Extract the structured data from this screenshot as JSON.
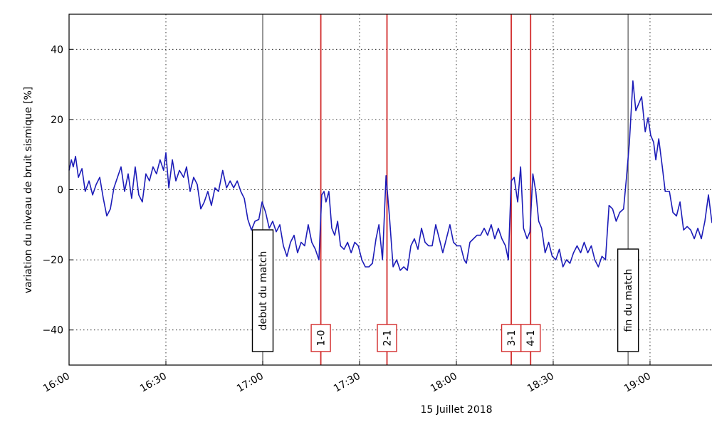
{
  "chart_data": {
    "type": "line",
    "title": "",
    "xlabel": "15 Juillet 2018",
    "ylabel": "variation du niveau de bruit sismique [%]",
    "x_units": "minutes since 16:00",
    "xlim": [
      0,
      199.2
    ],
    "ylim": [
      -50,
      50
    ],
    "grid": true,
    "x_ticks": [
      {
        "value": 0,
        "label": "16:00"
      },
      {
        "value": 30,
        "label": "16:30"
      },
      {
        "value": 60,
        "label": "17:00"
      },
      {
        "value": 90,
        "label": "17:30"
      },
      {
        "value": 120,
        "label": "18:00"
      },
      {
        "value": 150,
        "label": "18:30"
      },
      {
        "value": 180,
        "label": "19:00"
      }
    ],
    "y_ticks": [
      {
        "value": 40,
        "label": "40"
      },
      {
        "value": 20,
        "label": "20"
      },
      {
        "value": 0,
        "label": "0"
      },
      {
        "value": -20,
        "label": "−20"
      },
      {
        "value": -40,
        "label": "−40"
      }
    ],
    "series": [
      {
        "name": "bruit sismique",
        "color": "#1c1cb8",
        "x": [
          0,
          0.7,
          1.3,
          2,
          2.9,
          4,
          5,
          6.2,
          7.3,
          8.4,
          9.5,
          10.6,
          11.7,
          12.8,
          13.9,
          15,
          16.1,
          17.2,
          18.3,
          19.4,
          20.5,
          21.6,
          22.7,
          23.8,
          24.9,
          26,
          27.1,
          28.2,
          29.3,
          30,
          30.9,
          32,
          33.1,
          34.2,
          35.5,
          36.4,
          37.5,
          38.6,
          39.7,
          40.8,
          41.9,
          43,
          44.1,
          45.2,
          46.3,
          47.6,
          48.8,
          49.9,
          51,
          52.1,
          53.2,
          54.3,
          55.4,
          56.5,
          57.6,
          58.8,
          59.8,
          60.9,
          62,
          63.1,
          64.2,
          65.3,
          66.4,
          67.5,
          68.6,
          69.7,
          70.8,
          71.9,
          73,
          74.1,
          75.2,
          76.3,
          77.4,
          78.3,
          79,
          79.6,
          80.5,
          81.4,
          82.3,
          83.2,
          84.1,
          85.2,
          86.3,
          87.4,
          88.5,
          89.6,
          90.7,
          91.8,
          92.9,
          94,
          95.1,
          96,
          97.1,
          98.2,
          99.3,
          100.4,
          101.5,
          102.6,
          103.7,
          104.8,
          105.9,
          107,
          108.1,
          109.2,
          110.3,
          111.4,
          112.5,
          113.6,
          114.7,
          115.8,
          116.9,
          118,
          119.1,
          120.2,
          121.3,
          122.4,
          123.1,
          124.2,
          125.3,
          126.4,
          127.5,
          128.6,
          129.7,
          130.8,
          131.9,
          133,
          134.1,
          135.2,
          136.1,
          137,
          137.9,
          139,
          139.9,
          140.8,
          141.9,
          142.8,
          143.7,
          144.6,
          145.5,
          146.4,
          147.5,
          148.6,
          149.7,
          150.8,
          151.9,
          153,
          154.1,
          155.2,
          156.3,
          157.4,
          158.5,
          159.6,
          160.7,
          161.8,
          162.9,
          164,
          165.1,
          166.2,
          167.3,
          168.4,
          169.5,
          170.6,
          171.8,
          172.7,
          173.6,
          174.7,
          175.6,
          176.5,
          177.4,
          178.5,
          179.4,
          180.2,
          181.1,
          181.8,
          182.7,
          183.8,
          184.7,
          186,
          187.1,
          188.2,
          189.3,
          190.4,
          191.5,
          192.6,
          193.7,
          194.8,
          195.9,
          197,
          198.1,
          199.2
        ],
        "y": [
          5.5,
          8.5,
          6.5,
          9.5,
          3.5,
          6,
          -0.5,
          2.5,
          -1.5,
          1.5,
          3.5,
          -2.5,
          -7.5,
          -5.5,
          0.5,
          3.5,
          6.5,
          -0.5,
          4.5,
          -2.5,
          6.5,
          -1.5,
          -3.5,
          4.5,
          2.5,
          6.5,
          4.5,
          8.5,
          5.5,
          10.5,
          0.5,
          8.5,
          2.5,
          5.5,
          3.5,
          6.5,
          -0.5,
          3.5,
          1.5,
          -5.5,
          -3.5,
          -0.5,
          -4.5,
          0.5,
          -0.5,
          5.5,
          0.5,
          2.5,
          0.5,
          2.5,
          -0.5,
          -2.5,
          -8.5,
          -11.5,
          -9,
          -8.5,
          -3.5,
          -6.5,
          -11,
          -9,
          -12,
          -10,
          -16,
          -19,
          -15,
          -13,
          -18,
          -15,
          -16,
          -10,
          -15,
          -17,
          -20,
          -1.5,
          -0.5,
          -3.5,
          -0.5,
          -11,
          -13,
          -9,
          -16,
          -17,
          -15,
          -18,
          -15,
          -16,
          -20,
          -22,
          -22,
          -21,
          -14,
          -10,
          -20,
          4,
          -8,
          -22,
          -20,
          -23,
          -22,
          -23,
          -16,
          -14,
          -17,
          -11,
          -15,
          -16,
          -16,
          -10,
          -14,
          -18,
          -14,
          -10,
          -15,
          -16,
          -16,
          -20,
          -21,
          -15,
          -14,
          -13,
          -13,
          -11,
          -13,
          -10,
          -14,
          -11,
          -14,
          -16,
          -20,
          2.5,
          3.5,
          -3.5,
          6.5,
          -11,
          -14,
          -12,
          4.5,
          -0.5,
          -9,
          -11,
          -18,
          -15,
          -19,
          -20,
          -17,
          -22,
          -20,
          -21,
          -18,
          -16,
          -18,
          -15,
          -18,
          -16,
          -20,
          -22,
          -19,
          -20,
          -4.5,
          -5.5,
          -9,
          -6.5,
          -5.5,
          3.5,
          13.5,
          31,
          22.5,
          24.5,
          26.5,
          16.5,
          20.5,
          15.5,
          13.5,
          8.5,
          14.5,
          6.5,
          -0.5,
          -0.5,
          -6.5,
          -7.5,
          -3.5,
          -11.5,
          -10.5,
          -11.5,
          -14,
          -11,
          -14,
          -9,
          -1.5,
          -9.5
        ]
      }
    ],
    "annotations": [
      {
        "label": "debut du match",
        "x": 60,
        "kind": "match",
        "color": "#555555"
      },
      {
        "label": "1-0",
        "x": 78,
        "kind": "goal",
        "color": "#d22b2b"
      },
      {
        "label": "2-1",
        "x": 98.5,
        "kind": "goal",
        "color": "#d22b2b"
      },
      {
        "label": "3-1",
        "x": 137,
        "kind": "goal",
        "color": "#d22b2b"
      },
      {
        "label": "4-1",
        "x": 143,
        "kind": "goal",
        "color": "#d22b2b"
      },
      {
        "label": "fin du match",
        "x": 173.2,
        "kind": "match-end",
        "color": "#555555"
      }
    ]
  }
}
